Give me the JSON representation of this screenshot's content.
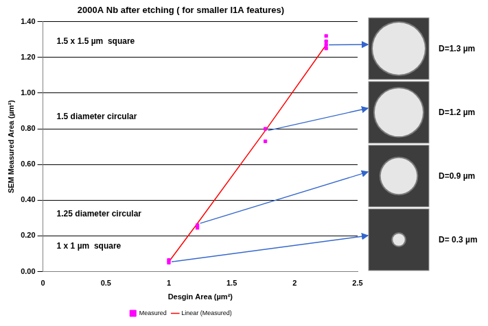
{
  "chart_data": {
    "type": "scatter",
    "title": "2000A Nb after etching ( for smaller I1A features)",
    "x_label": "Desgin Area (µm²)",
    "y_label": "SEM Measured Area (µm²)",
    "xlim": [
      0,
      2.5
    ],
    "xticks": [
      0,
      0.5,
      1,
      1.5,
      2,
      2.5
    ],
    "ylim": [
      0,
      1.4
    ],
    "yticks": [
      {
        "value": 0,
        "label": "0.00"
      },
      {
        "value": 0.2,
        "label": "0.20"
      },
      {
        "value": 0.4,
        "label": "0.40"
      },
      {
        "value": 0.6,
        "label": "0.60"
      },
      {
        "value": 0.8,
        "label": "0.80"
      },
      {
        "value": 1,
        "label": "1.00"
      },
      {
        "value": 1.2,
        "label": "1.20"
      },
      {
        "value": 1.4,
        "label": "1.40"
      }
    ],
    "grid": "y",
    "legend": "bottom",
    "series": [
      {
        "name": "Measured",
        "type": "scatter",
        "color": "#ff00ff",
        "marker": "square",
        "x": [
          1,
          1,
          1.227,
          1.227,
          1.767,
          1.767,
          2.25,
          2.25,
          2.25,
          2.25
        ],
        "values": [
          0.05,
          0.065,
          0.26,
          0.245,
          0.8,
          0.73,
          1.32,
          1.29,
          1.27,
          1.25
        ]
      },
      {
        "name": "Linear (Measured)",
        "type": "line",
        "color": "#ff0000",
        "line_style": "solid",
        "x": [
          1,
          1.227,
          1.767,
          2.25
        ],
        "values": [
          0.055,
          0.27,
          0.79,
          1.27
        ]
      }
    ],
    "annotations": [
      "1.5 x 1.5 µm  square",
      "1.5 diameter circular",
      "1.25 diameter circular",
      "1 x 1 µm  square"
    ],
    "sem_images": [
      {
        "label": "D=1.3 µm",
        "diameter": 1.3
      },
      {
        "label": "D=1.2 µm",
        "diameter": 1.2
      },
      {
        "label": "D=0.9 µm",
        "diameter": 0.9
      },
      {
        "label": "D= 0.3 µm",
        "diameter": 0.3
      }
    ]
  }
}
